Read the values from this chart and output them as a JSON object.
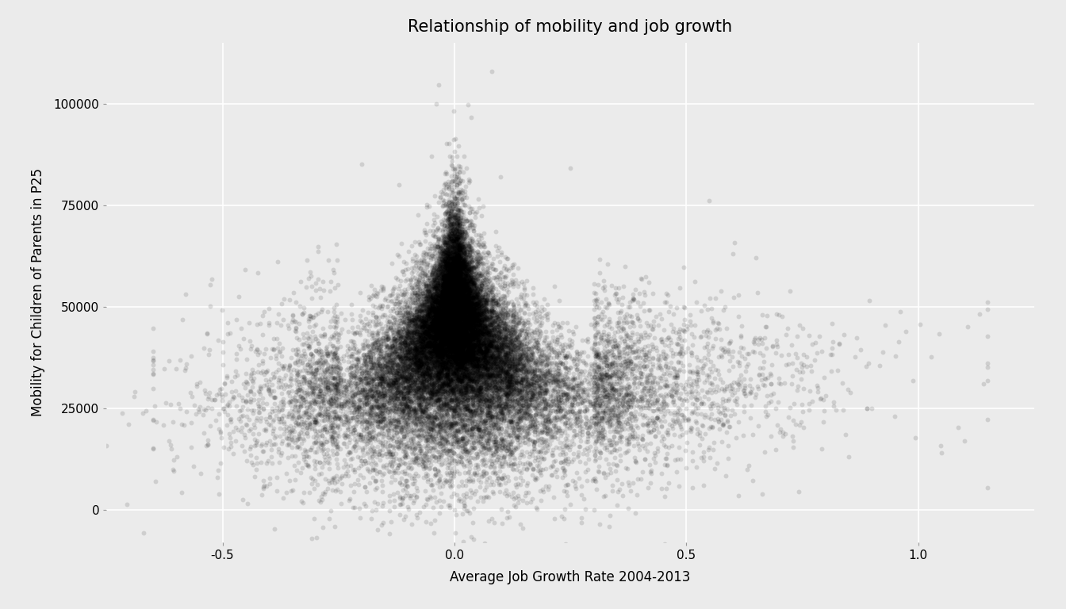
{
  "title": "Relationship of mobility and job growth",
  "xlabel": "Average Job Growth Rate 2004-2013",
  "ylabel": "Mobility for Children of Parents in P25",
  "xlim": [
    -0.75,
    1.25
  ],
  "ylim": [
    -8000,
    115000
  ],
  "xticks": [
    -0.5,
    0.0,
    0.5,
    1.0
  ],
  "yticks": [
    0,
    25000,
    50000,
    75000,
    100000
  ],
  "background_color": "#ebebeb",
  "plot_bg_color": "#ebebeb",
  "point_color": "#000000",
  "point_alpha": 0.12,
  "point_size": 18,
  "n_points": 30000,
  "seed": 42,
  "title_fontsize": 15,
  "label_fontsize": 12,
  "tick_fontsize": 11,
  "grid_color": "#ffffff",
  "grid_linewidth": 1.2
}
